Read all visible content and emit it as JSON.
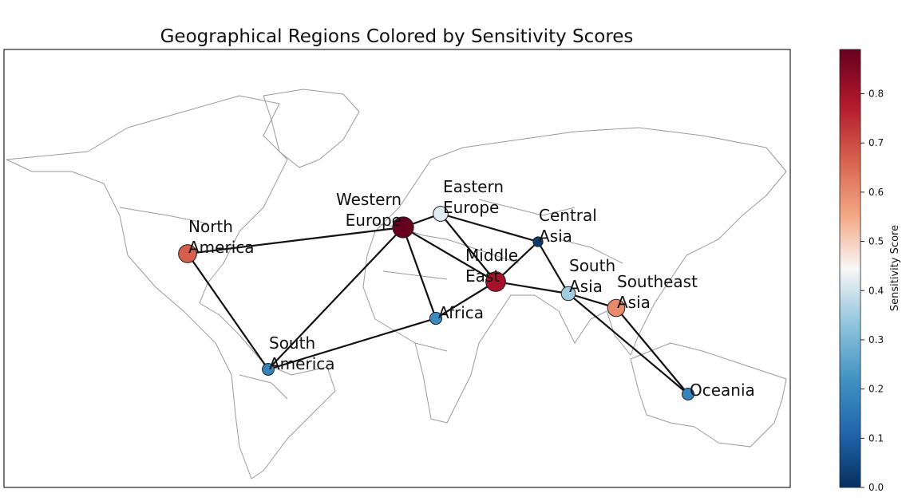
{
  "chart_data": {
    "type": "network-map",
    "title": "Geographical Regions Colored by Sensitivity Scores",
    "colorbar_label": "Sensitivity Score",
    "colormap": "RdBu_r",
    "clim": [
      0,
      0.89
    ],
    "cticks": [
      {
        "value": 0,
        "label": "0.0"
      },
      0.1,
      0.2,
      0.3,
      0.4,
      0.5,
      0.6,
      0.7,
      0.8
    ],
    "nodes": [
      {
        "label": [
          "North",
          "America"
        ],
        "score": 0.67
      },
      {
        "label": [
          "South",
          "America"
        ],
        "score": 0.18
      },
      {
        "label": [
          "Western",
          "Europe"
        ],
        "score": 0.89
      },
      {
        "label": [
          "Eastern",
          "Europe"
        ],
        "score": 0.42
      },
      {
        "label": [
          "Middle",
          "East"
        ],
        "score": 0.8
      },
      {
        "label": [
          "Africa"
        ],
        "score": 0.2
      },
      {
        "label": [
          "Central",
          "Asia"
        ],
        "score": 0.02
      },
      {
        "label": [
          "South",
          "Asia"
        ],
        "score": 0.35
      },
      {
        "label": [
          "Southeast",
          "Asia"
        ],
        "score": 0.6
      },
      {
        "label": [
          "Oceania"
        ],
        "score": 0.18
      }
    ]
  }
}
